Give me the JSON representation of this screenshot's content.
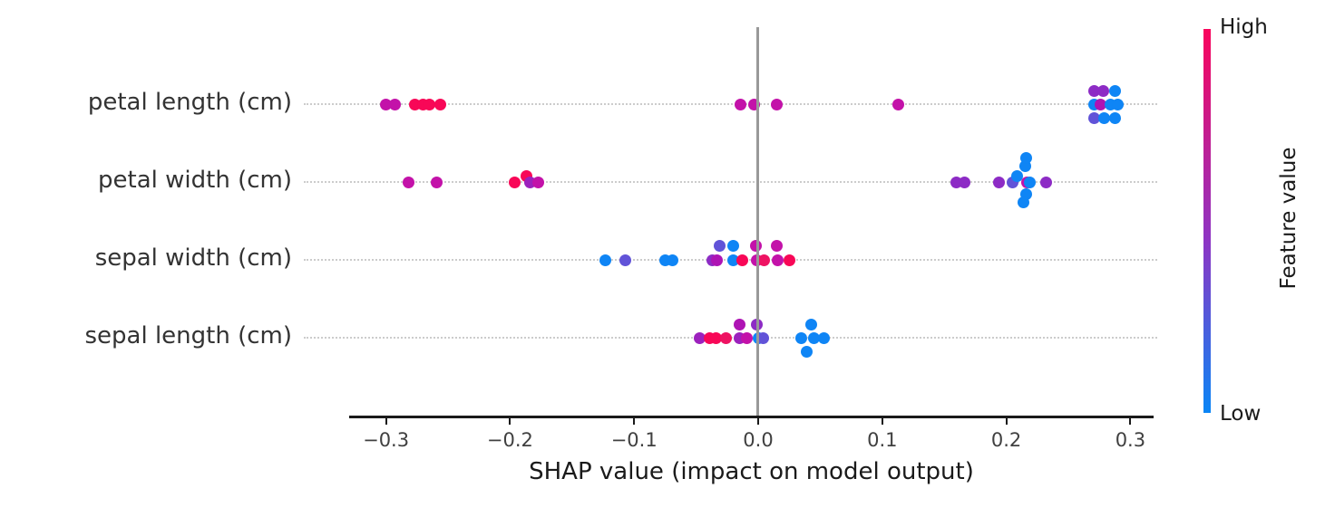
{
  "chart_data": {
    "type": "scatter",
    "subtype": "shap-beeswarm-summary",
    "xlabel": "SHAP value (impact on model output)",
    "xlim": [
      -0.33,
      0.318
    ],
    "grid": "dotted-horizontal-row-guides",
    "zero_line_value": 0.0,
    "x_ticks": [
      {
        "v": -0.3,
        "label": "−0.3"
      },
      {
        "v": -0.2,
        "label": "−0.2"
      },
      {
        "v": -0.1,
        "label": "−0.1"
      },
      {
        "v": 0.0,
        "label": "0.0"
      },
      {
        "v": 0.1,
        "label": "0.1"
      },
      {
        "v": 0.2,
        "label": "0.2"
      },
      {
        "v": 0.3,
        "label": "0.3"
      }
    ],
    "palette": {
      "rd": "#f80757",
      "rd2": "#ee1362",
      "mg": "#c312a9",
      "mg2": "#ae14b4",
      "pu": "#8d2bc5",
      "pu2": "#9c21bd",
      "ir": "#6153d8",
      "bl": "#0f85f5"
    },
    "colorbar": {
      "title": "Feature value",
      "high_label": "High",
      "low_label": "Low",
      "top_color": "#f9055c",
      "mid_color": "#8e35c4",
      "bottom_color": "#0a85f5"
    },
    "series": [
      {
        "name": "petal length (cm)",
        "points": [
          [
            -0.3,
            "mg",
            0
          ],
          [
            -0.293,
            "mg",
            0
          ],
          [
            -0.277,
            "rd",
            0
          ],
          [
            -0.27,
            "rd",
            0
          ],
          [
            -0.265,
            "rd",
            0
          ],
          [
            -0.256,
            "rd",
            0
          ],
          [
            -0.014,
            "mg",
            0
          ],
          [
            -0.003,
            "mg",
            0
          ],
          [
            0.015,
            "mg",
            0
          ],
          [
            0.113,
            "mg",
            0
          ],
          [
            0.271,
            "pu",
            -15
          ],
          [
            0.278,
            "pu",
            -15
          ],
          [
            0.288,
            "bl",
            -15
          ],
          [
            0.271,
            "bl",
            0
          ],
          [
            0.276,
            "mg2",
            0
          ],
          [
            0.284,
            "bl",
            0
          ],
          [
            0.29,
            "bl",
            0
          ],
          [
            0.271,
            "ir",
            15
          ],
          [
            0.279,
            "bl",
            15
          ],
          [
            0.288,
            "bl",
            15
          ]
        ]
      },
      {
        "name": "petal width (cm)",
        "points": [
          [
            -0.282,
            "mg",
            0
          ],
          [
            -0.259,
            "mg",
            0
          ],
          [
            -0.196,
            "rd",
            0
          ],
          [
            -0.187,
            "rd",
            -7
          ],
          [
            -0.184,
            "pu2",
            0
          ],
          [
            -0.177,
            "mg",
            0
          ],
          [
            0.16,
            "pu",
            0
          ],
          [
            0.166,
            "pu",
            0
          ],
          [
            0.194,
            "pu",
            0
          ],
          [
            0.205,
            "ir",
            0
          ],
          [
            0.209,
            "bl",
            -7
          ],
          [
            0.215,
            "bl",
            -18
          ],
          [
            0.216,
            "bl",
            -27
          ],
          [
            0.217,
            "mg",
            0
          ],
          [
            0.219,
            "bl",
            0
          ],
          [
            0.216,
            "bl",
            13
          ],
          [
            0.214,
            "bl",
            22
          ],
          [
            0.232,
            "pu",
            0
          ]
        ]
      },
      {
        "name": "sepal width (cm)",
        "points": [
          [
            -0.123,
            "bl",
            0
          ],
          [
            -0.107,
            "ir",
            0
          ],
          [
            -0.075,
            "bl",
            0
          ],
          [
            -0.069,
            "bl",
            0
          ],
          [
            -0.037,
            "pu",
            0
          ],
          [
            -0.033,
            "mg2",
            0
          ],
          [
            -0.031,
            "ir",
            -16
          ],
          [
            -0.02,
            "bl",
            -16
          ],
          [
            -0.02,
            "bl",
            0
          ],
          [
            -0.013,
            "rd",
            0
          ],
          [
            -0.002,
            "mg",
            -16
          ],
          [
            -0.001,
            "mg",
            0
          ],
          [
            0.005,
            "rd2",
            0
          ],
          [
            0.015,
            "mg",
            -16
          ],
          [
            0.016,
            "mg",
            0
          ],
          [
            0.025,
            "rd",
            0
          ]
        ]
      },
      {
        "name": "sepal length (cm)",
        "points": [
          [
            -0.047,
            "pu2",
            0
          ],
          [
            -0.039,
            "rd",
            0
          ],
          [
            -0.034,
            "rd",
            0
          ],
          [
            -0.026,
            "rd2",
            0
          ],
          [
            -0.015,
            "mg2",
            -15
          ],
          [
            -0.015,
            "pu2",
            0
          ],
          [
            -0.009,
            "mg",
            0
          ],
          [
            -0.001,
            "pu",
            -15
          ],
          [
            0.0,
            "bl",
            0
          ],
          [
            0.004,
            "ir",
            0
          ],
          [
            0.043,
            "bl",
            -15
          ],
          [
            0.035,
            "bl",
            0
          ],
          [
            0.045,
            "bl",
            0
          ],
          [
            0.053,
            "bl",
            0
          ],
          [
            0.039,
            "bl",
            15
          ]
        ]
      }
    ]
  }
}
